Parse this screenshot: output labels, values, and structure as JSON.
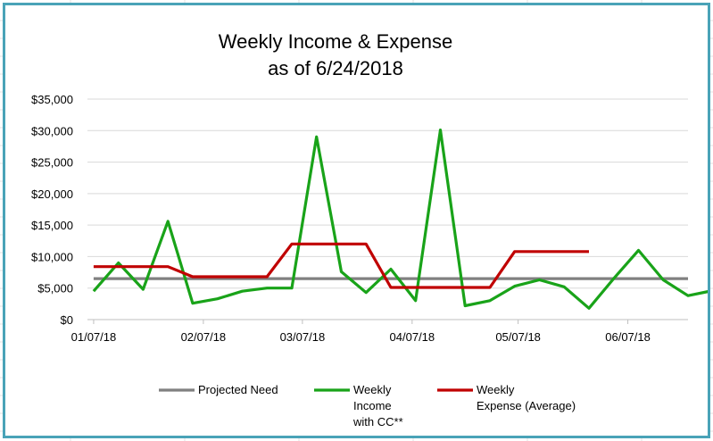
{
  "chart_data": {
    "type": "line",
    "title_lines": [
      "Weekly Income & Expense",
      "as of 6/24/2018"
    ],
    "y_ticks": [
      "$0",
      "$5,000",
      "$10,000",
      "$15,000",
      "$20,000",
      "$25,000",
      "$30,000",
      "$35,000"
    ],
    "y_tick_values": [
      0,
      5000,
      10000,
      15000,
      20000,
      25000,
      30000,
      35000
    ],
    "ylim": [
      0,
      35000
    ],
    "x_ticks": [
      "01/07/18",
      "02/07/18",
      "03/07/18",
      "04/07/18",
      "05/07/18",
      "06/07/18"
    ],
    "x_tick_weeks": [
      0,
      4.43,
      8.43,
      12.86,
      17.14,
      21.57
    ],
    "xlim_weeks": [
      -0.25,
      24.0
    ],
    "grid": true,
    "legend_placement": "bottom",
    "series": [
      {
        "name_lines": [
          "Projected Need"
        ],
        "color": "#808080",
        "values": [
          6500,
          6500,
          6500,
          6500,
          6500,
          6500,
          6500,
          6500,
          6500,
          6500,
          6500,
          6500,
          6500,
          6500,
          6500,
          6500,
          6500,
          6500,
          6500,
          6500,
          6500,
          6500,
          6500,
          6500,
          6500
        ]
      },
      {
        "name_lines": [
          "Weekly",
          "Income",
          "with CC**"
        ],
        "color": "#19a319",
        "values": [
          4500,
          9000,
          4800,
          15600,
          2600,
          3300,
          4500,
          5000,
          5000,
          29000,
          7600,
          4300,
          8000,
          3000,
          30100,
          2200,
          3000,
          5300,
          6300,
          5200,
          1800,
          6500,
          11000,
          6300,
          3800,
          4600
        ]
      },
      {
        "name_lines": [
          "Weekly",
          "Expense (Average)"
        ],
        "color": "#c00000",
        "values": [
          8400,
          8400,
          8400,
          8400,
          6800,
          6800,
          6800,
          6800,
          12000,
          12000,
          12000,
          12000,
          5100,
          5100,
          5100,
          5100,
          5100,
          10800,
          10800,
          10800,
          10800
        ]
      }
    ]
  }
}
